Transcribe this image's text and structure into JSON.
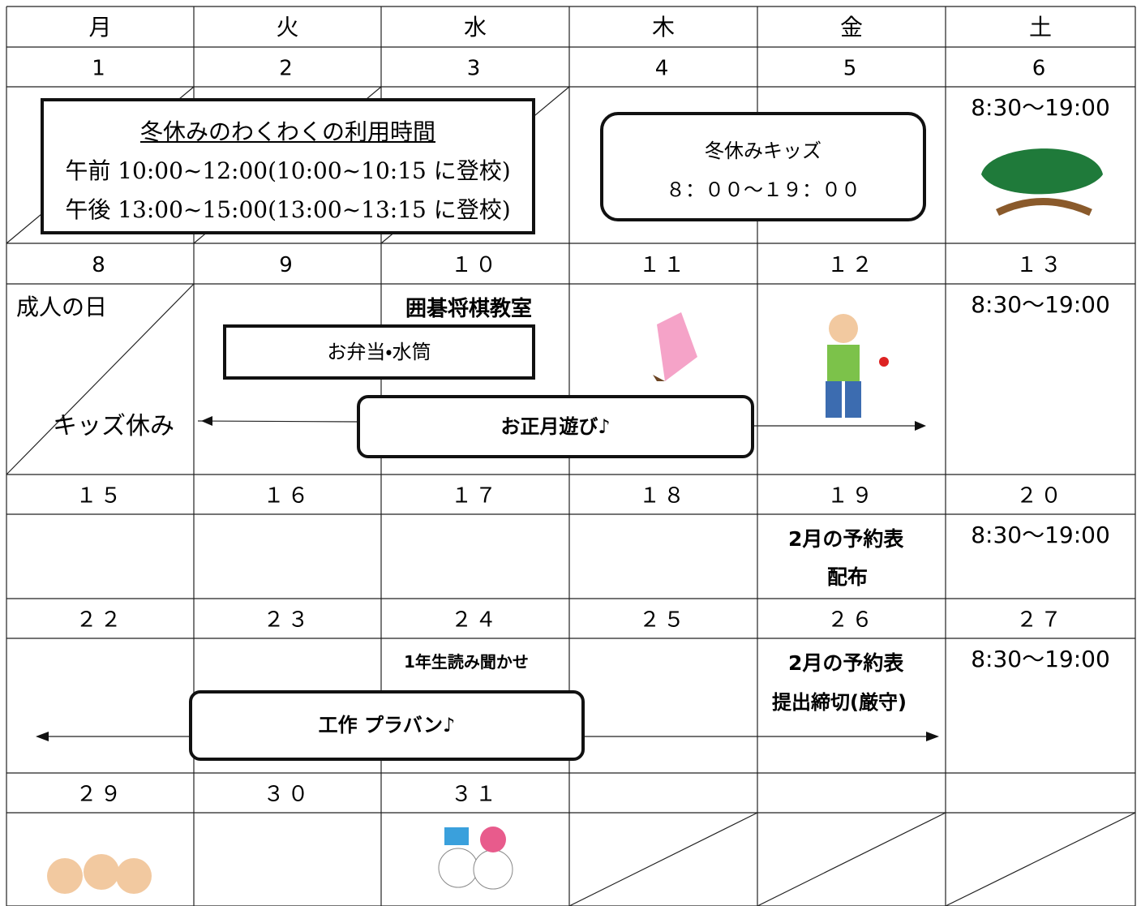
{
  "weekdays": [
    "月",
    "火",
    "水",
    "木",
    "金",
    "土"
  ],
  "weeks": [
    {
      "dates": [
        "1",
        "2",
        "3",
        "4",
        "5",
        "6"
      ]
    },
    {
      "dates": [
        "8",
        "9",
        "１０",
        "１１",
        "１２",
        "１３"
      ]
    },
    {
      "dates": [
        "１５",
        "１６",
        "１７",
        "１８",
        "１９",
        "２０"
      ]
    },
    {
      "dates": [
        "２２",
        "２３",
        "２４",
        "２５",
        "２６",
        "２７"
      ]
    },
    {
      "dates": [
        "２９",
        "３０",
        "３１"
      ]
    }
  ],
  "hours": [
    "8:30～19:00",
    "8:30～19:00",
    "8:30～19:00",
    "8:30～19:00"
  ],
  "winter_box": {
    "title": "冬休みのわくわくの利用時間",
    "lines": [
      "午前 10:00~12:00(10:00~10:15 に登校)",
      "午後 13:00~15:00(13:00~13:15 に登校)"
    ]
  },
  "kids_box": {
    "title": "冬休みキッズ",
    "time": "８：００～１９：００"
  },
  "week2": {
    "holiday": "成人の日",
    "closed": "キッズ休み",
    "class": "囲碁将棋教室",
    "bring": "お弁当・水筒",
    "event": "お正月遊び♪"
  },
  "week3": {
    "notice": [
      "2月の予約表",
      "配布"
    ]
  },
  "week4": {
    "class": "1年生読み聞かせ",
    "notice": [
      "2月の予約表",
      "提出締切(厳守)"
    ],
    "event": "工作 プラバン♪"
  }
}
